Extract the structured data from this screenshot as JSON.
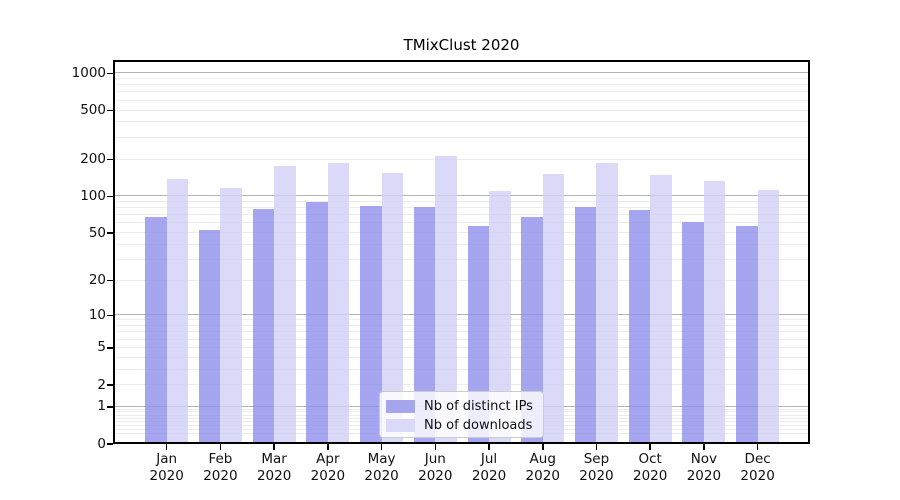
{
  "chart_data": {
    "type": "bar",
    "title": "TMixClust 2020",
    "xlabel": "",
    "ylabel": "",
    "categories": [
      "Jan",
      "Feb",
      "Mar",
      "Apr",
      "May",
      "Jun",
      "Jul",
      "Aug",
      "Sep",
      "Oct",
      "Nov",
      "Dec"
    ],
    "category_year_suffix": "2020",
    "series": [
      {
        "key": "distinct-ips",
        "name": "Nb of distinct IPs",
        "bar_color": "rgba(140,140,236,0.78)",
        "legend_color": "#a6a6ef",
        "values": [
          66,
          52,
          77,
          89,
          82,
          80,
          56,
          67,
          81,
          76,
          61,
          56
        ]
      },
      {
        "key": "downloads",
        "name": "Nb of downloads",
        "bar_color": "rgba(208,208,246,0.78)",
        "legend_color": "#dadaf8",
        "values": [
          137,
          116,
          173,
          184,
          153,
          210,
          109,
          150,
          184,
          146,
          131,
          110
        ]
      }
    ],
    "yscale": "log1p",
    "ylim": [
      0,
      1283
    ],
    "y_ticks": [
      0,
      1,
      2,
      5,
      10,
      20,
      50,
      100,
      200,
      500,
      1000
    ],
    "major_gridline_values": [
      1,
      10,
      100,
      1000
    ],
    "minor_gridline_decades": [
      0.1,
      1,
      10,
      100
    ],
    "grid": true,
    "legend_position": "lower center",
    "colors": {
      "spine": "#000000",
      "major_grid": "#b4b4b4",
      "minor_grid": "#ececec",
      "background": "#ffffff"
    }
  }
}
